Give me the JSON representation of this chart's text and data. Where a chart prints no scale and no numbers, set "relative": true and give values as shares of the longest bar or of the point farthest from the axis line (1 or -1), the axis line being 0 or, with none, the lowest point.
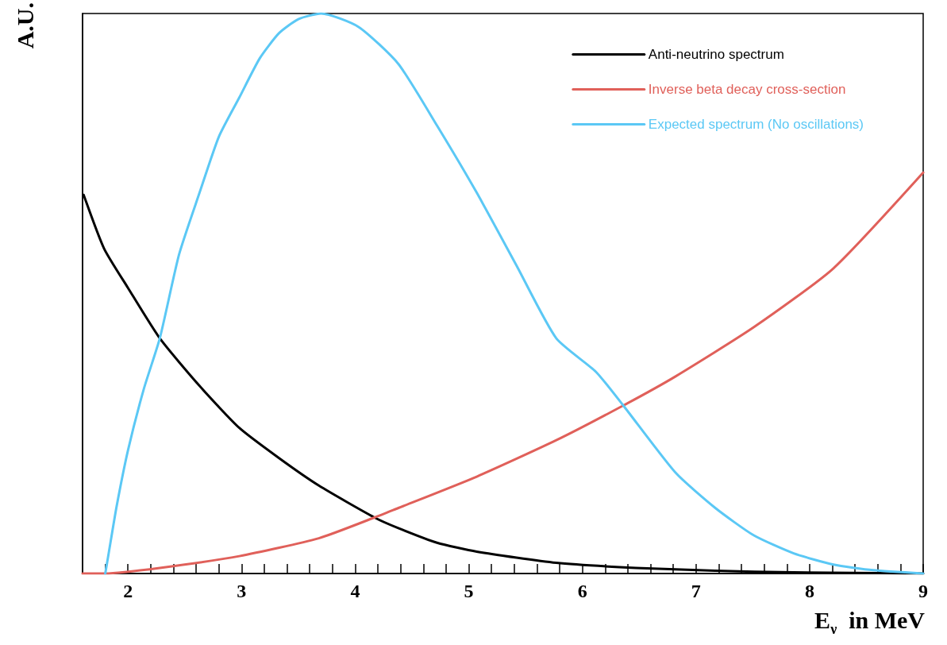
{
  "chart_data": {
    "type": "line",
    "relative": true,
    "xlabel": "E$_{ν}$  in MeV",
    "ylabel": "A.U.",
    "xlim": [
      1.6,
      9
    ],
    "xticks": [
      {
        "value": 1.8,
        "label": null
      },
      2,
      {
        "value": 2.2,
        "label": null
      },
      {
        "value": 2.4,
        "label": null
      },
      {
        "value": 2.6,
        "label": null
      },
      {
        "value": 2.8,
        "label": null
      },
      3,
      {
        "value": 3.2,
        "label": null
      },
      {
        "value": 3.4,
        "label": null
      },
      {
        "value": 3.6,
        "label": null
      },
      {
        "value": 3.8,
        "label": null
      },
      4,
      {
        "value": 4.2,
        "label": null
      },
      {
        "value": 4.4,
        "label": null
      },
      {
        "value": 4.6,
        "label": null
      },
      {
        "value": 4.8,
        "label": null
      },
      5,
      {
        "value": 5.2,
        "label": null
      },
      {
        "value": 5.4,
        "label": null
      },
      {
        "value": 5.6,
        "label": null
      },
      {
        "value": 5.8,
        "label": null
      },
      6,
      {
        "value": 6.2,
        "label": null
      },
      {
        "value": 6.4,
        "label": null
      },
      {
        "value": 6.6,
        "label": null
      },
      {
        "value": 6.8,
        "label": null
      },
      7,
      {
        "value": 7.2,
        "label": null
      },
      {
        "value": 7.4,
        "label": null
      },
      {
        "value": 7.6,
        "label": null
      },
      {
        "value": 7.8,
        "label": null
      },
      8,
      {
        "value": 8.2,
        "label": null
      },
      {
        "value": 8.4,
        "label": null
      },
      {
        "value": 8.6,
        "label": null
      },
      {
        "value": 8.8,
        "label": null
      },
      9
    ],
    "legend": "top right",
    "grid": false,
    "marker": "none",
    "line_style": "solid",
    "series": [
      {
        "name": "Anti-neutrino spectrum",
        "color": "#000000",
        "x": [
          1.61,
          1.79,
          2.0,
          2.28,
          2.63,
          2.98,
          3.33,
          3.68,
          4.17,
          4.38,
          4.72,
          5.07,
          5.77,
          6.47,
          7.17,
          7.86,
          9.0
        ],
        "values": [
          0.676,
          0.58,
          0.51,
          0.42,
          0.335,
          0.26,
          0.206,
          0.157,
          0.1,
          0.081,
          0.055,
          0.039,
          0.019,
          0.01,
          0.005,
          0.002,
          0
        ]
      },
      {
        "name": "Inverse beta decay cross-section",
        "color": "#e0605a",
        "x": [
          1.6,
          1.8,
          2.28,
          2.98,
          3.68,
          4.17,
          4.38,
          5.07,
          5.77,
          6.36,
          6.82,
          7.51,
          8.21,
          9.0
        ],
        "values": [
          0,
          0,
          0.01,
          0.031,
          0.063,
          0.1,
          0.117,
          0.173,
          0.238,
          0.3,
          0.352,
          0.44,
          0.545,
          0.716
        ]
      },
      {
        "name": "Expected spectrum (No oscillations)",
        "color": "#5bc8f5",
        "x": [
          1.8,
          1.83,
          1.9,
          2.0,
          2.14,
          2.28,
          2.45,
          2.63,
          2.8,
          2.98,
          3.16,
          3.33,
          3.5,
          3.7,
          4.03,
          4.38,
          4.72,
          5.07,
          5.42,
          5.77,
          6.12,
          6.36,
          6.82,
          7.17,
          7.51,
          7.86,
          8.21,
          8.56,
          9.0
        ],
        "values": [
          0,
          0.036,
          0.12,
          0.22,
          0.33,
          0.42,
          0.57,
          0.68,
          0.78,
          0.85,
          0.92,
          0.965,
          0.99,
          1,
          0.976,
          0.91,
          0.8,
          0.68,
          0.55,
          0.42,
          0.36,
          0.3,
          0.18,
          0.117,
          0.068,
          0.036,
          0.016,
          0.006,
          0
        ]
      }
    ]
  }
}
